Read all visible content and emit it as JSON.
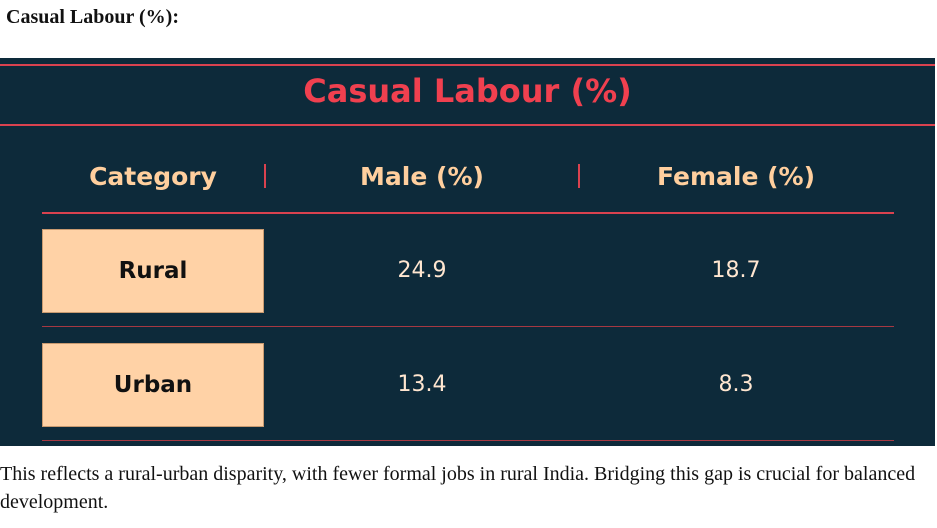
{
  "heading": "Casual Labour (%):",
  "table": {
    "title": "Casual Labour (%)",
    "headers": [
      "Category",
      "Male (%)",
      "Female (%)"
    ],
    "rows": [
      {
        "category": "Rural",
        "male": "24.9",
        "female": "18.7"
      },
      {
        "category": "Urban",
        "male": "13.4",
        "female": "8.3"
      }
    ],
    "colors": {
      "background": "#0d2a3a",
      "title": "#f0404f",
      "header_text": "#ffcf9e",
      "rule": "#d9424f",
      "category_box": "#ffd2a6"
    }
  },
  "footer": "This reflects a rural-urban disparity, with fewer formal jobs in rural India. Bridging this gap is crucial for balanced development."
}
